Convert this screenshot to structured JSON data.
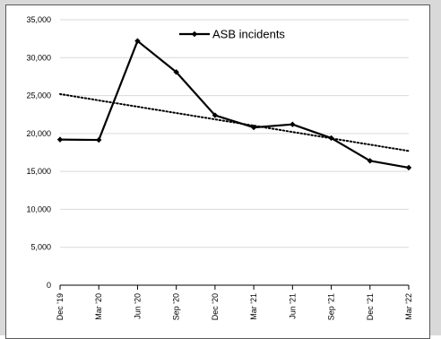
{
  "chart_data": {
    "type": "line",
    "title": "",
    "xlabel": "",
    "ylabel": "",
    "categories": [
      "Dec '19",
      "Mar '20",
      "Jun '20",
      "Sep '20",
      "Dec '20",
      "Mar '21",
      "Jun '21",
      "Sep '21",
      "Dec '21",
      "Mar '22"
    ],
    "series": [
      {
        "name": "ASB incidents",
        "values": [
          19200,
          19150,
          32200,
          28100,
          22400,
          20800,
          21200,
          19400,
          16400,
          15500
        ],
        "color": "#000000",
        "marker": "diamond"
      }
    ],
    "trendline": {
      "type": "linear",
      "style": "dotted",
      "color": "#000000",
      "start_value": 25200,
      "end_value": 17700
    },
    "ylim": [
      0,
      35000
    ],
    "y_ticks": [
      0,
      5000,
      10000,
      15000,
      20000,
      25000,
      30000,
      35000
    ],
    "y_tick_labels": [
      "0",
      "5,000",
      "10,000",
      "15,000",
      "20,000",
      "25,000",
      "30,000",
      "35,000"
    ],
    "grid": "horizontal",
    "legend": {
      "position": "top-center",
      "entries": [
        "ASB incidents"
      ]
    }
  }
}
